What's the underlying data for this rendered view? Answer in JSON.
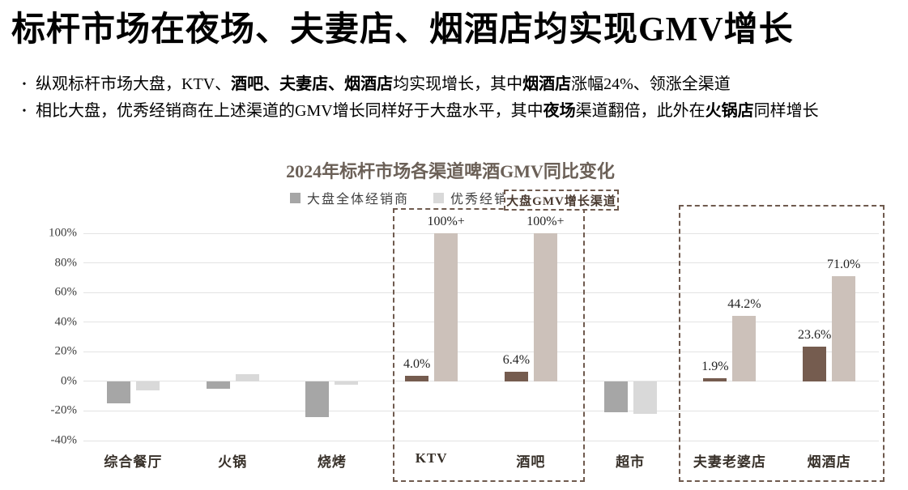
{
  "page": {
    "title": "标杆市场在夜场、夫妻店、烟酒店均实现GMV增长"
  },
  "bullets": [
    {
      "marker": "•",
      "segments": [
        {
          "text": "纵观标杆市场大盘，KTV、",
          "bold": false
        },
        {
          "text": "酒吧、夫妻店、烟酒店",
          "bold": true
        },
        {
          "text": "均实现增长，其中",
          "bold": false
        },
        {
          "text": "烟酒店",
          "bold": true
        },
        {
          "text": "涨幅24%、领涨全渠道",
          "bold": false
        }
      ]
    },
    {
      "marker": "•",
      "segments": [
        {
          "text": "相比大盘，优秀经销商在上述渠道的GMV增长同样好于大盘水平，其中",
          "bold": false
        },
        {
          "text": "夜场",
          "bold": true
        },
        {
          "text": "渠道翻倍，此外在",
          "bold": false
        },
        {
          "text": "火锅店",
          "bold": true
        },
        {
          "text": "同样增长",
          "bold": false
        }
      ]
    }
  ],
  "chart": {
    "title": "2024年标杆市场各渠道啤酒GMV同比变化",
    "legend": [
      {
        "label": "大盘全体经销商",
        "color": "#a6a6a6"
      },
      {
        "label": "优秀经销商",
        "color": "#d9d9d9"
      }
    ],
    "highlight_label": "大盘GMV增长渠道"
  },
  "chart_data": {
    "type": "bar",
    "title": "2024年标杆市场各渠道啤酒GMV同比变化",
    "categories": [
      "综合餐厅",
      "火锅",
      "烧烤",
      "KTV",
      "酒吧",
      "超市",
      "夫妻老婆店",
      "烟酒店"
    ],
    "series": [
      {
        "name": "大盘全体经销商",
        "values": [
          -15,
          -5,
          -24,
          4.0,
          6.4,
          -21,
          1.9,
          23.6
        ],
        "labels": [
          "",
          "",
          "",
          "4.0%",
          "6.4%",
          "",
          "1.9%",
          "23.6%"
        ]
      },
      {
        "name": "优秀经销商",
        "values": [
          -6,
          5,
          -2,
          100,
          100,
          -22,
          44.2,
          71.0
        ],
        "labels": [
          "",
          "",
          "",
          "100%+",
          "100%+",
          "",
          "44.2%",
          "71.0%"
        ]
      }
    ],
    "ylim": [
      -40,
      100
    ],
    "ytick_values": [
      100,
      80,
      60,
      40,
      20,
      0,
      -20,
      -40
    ],
    "yticks": [
      "100%",
      "80%",
      "60%",
      "40%",
      "20%",
      "0%",
      "-20%",
      "-40%"
    ],
    "grid": true,
    "legend_position": "top",
    "highlight_categories": [
      "KTV",
      "酒吧",
      "夫妻老婆店",
      "烟酒店"
    ],
    "highlight_boxes": [
      {
        "categories": [
          "KTV",
          "酒吧"
        ]
      },
      {
        "categories": [
          "夫妻老婆店",
          "烟酒店"
        ]
      }
    ],
    "highlight_label": "大盘GMV增长渠道",
    "colors": {
      "base_dark": "#a6a6a6",
      "base_light": "#d9d9d9",
      "highlight_dark": "#755c4f",
      "highlight_light": "#ccc1ba",
      "gridline": "#e3e3e3",
      "dash_border": "#6f5a4e",
      "chart_title": "#6b6057"
    }
  }
}
